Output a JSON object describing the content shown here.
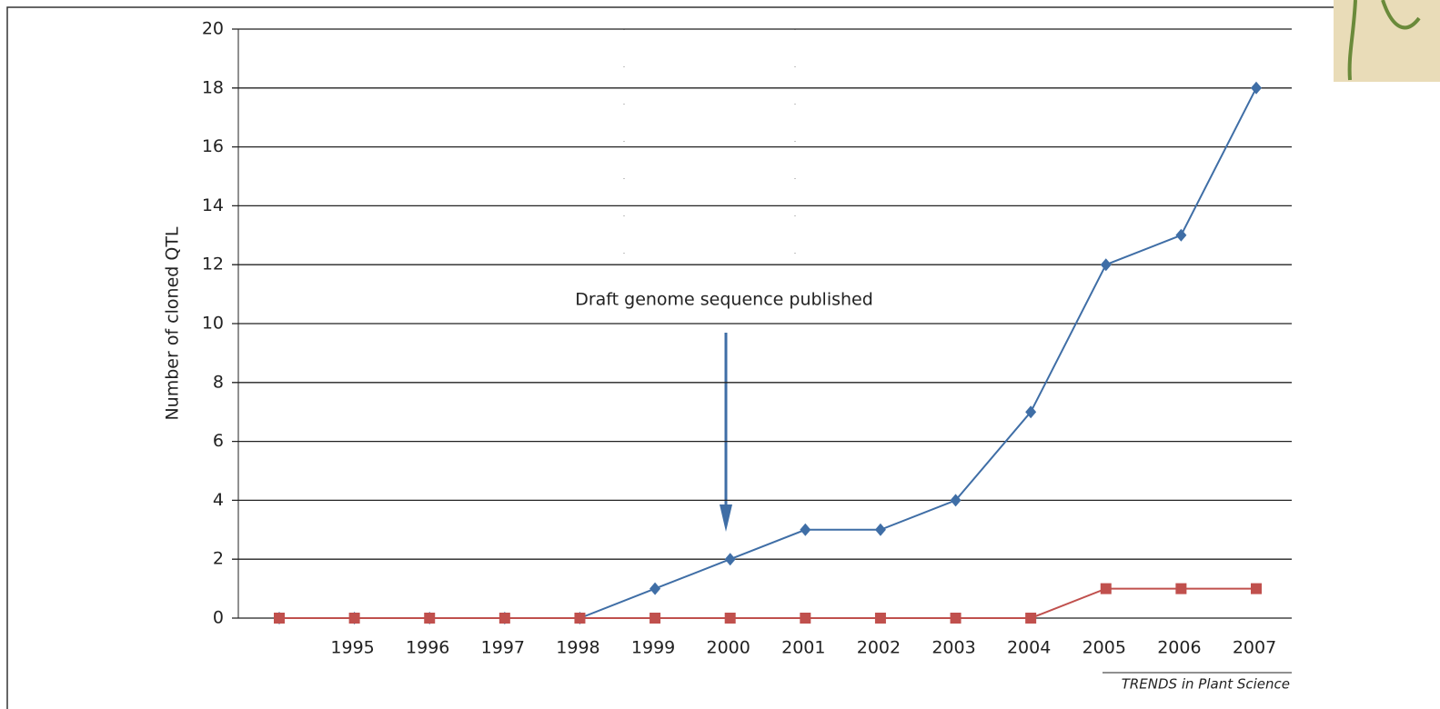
{
  "chart_data": {
    "type": "line",
    "y_label": "Number of cloned QTL",
    "annotation": "Draft genome sequence published",
    "source": "TRENDS in Plant Science",
    "categories": [
      null,
      "1995",
      "1996",
      "1997",
      "1998",
      "1999",
      "2000",
      "2001",
      "2002",
      "2003",
      "2004",
      "2005",
      "2006",
      "2007"
    ],
    "series": [
      {
        "color": "#3f6ea6",
        "marker": "diamond",
        "values": [
          0,
          0,
          0,
          0,
          0,
          1,
          2,
          3,
          3,
          4,
          7,
          12,
          13,
          18
        ]
      },
      {
        "color": "#c0504d",
        "marker": "square",
        "values": [
          0,
          0,
          0,
          0,
          0,
          0,
          0,
          0,
          0,
          0,
          0,
          1,
          1,
          1
        ]
      }
    ],
    "ylim": [
      0,
      20
    ],
    "yticks": [
      0,
      2,
      4,
      6,
      8,
      10,
      12,
      14,
      16,
      18,
      20
    ],
    "grid": true
  }
}
